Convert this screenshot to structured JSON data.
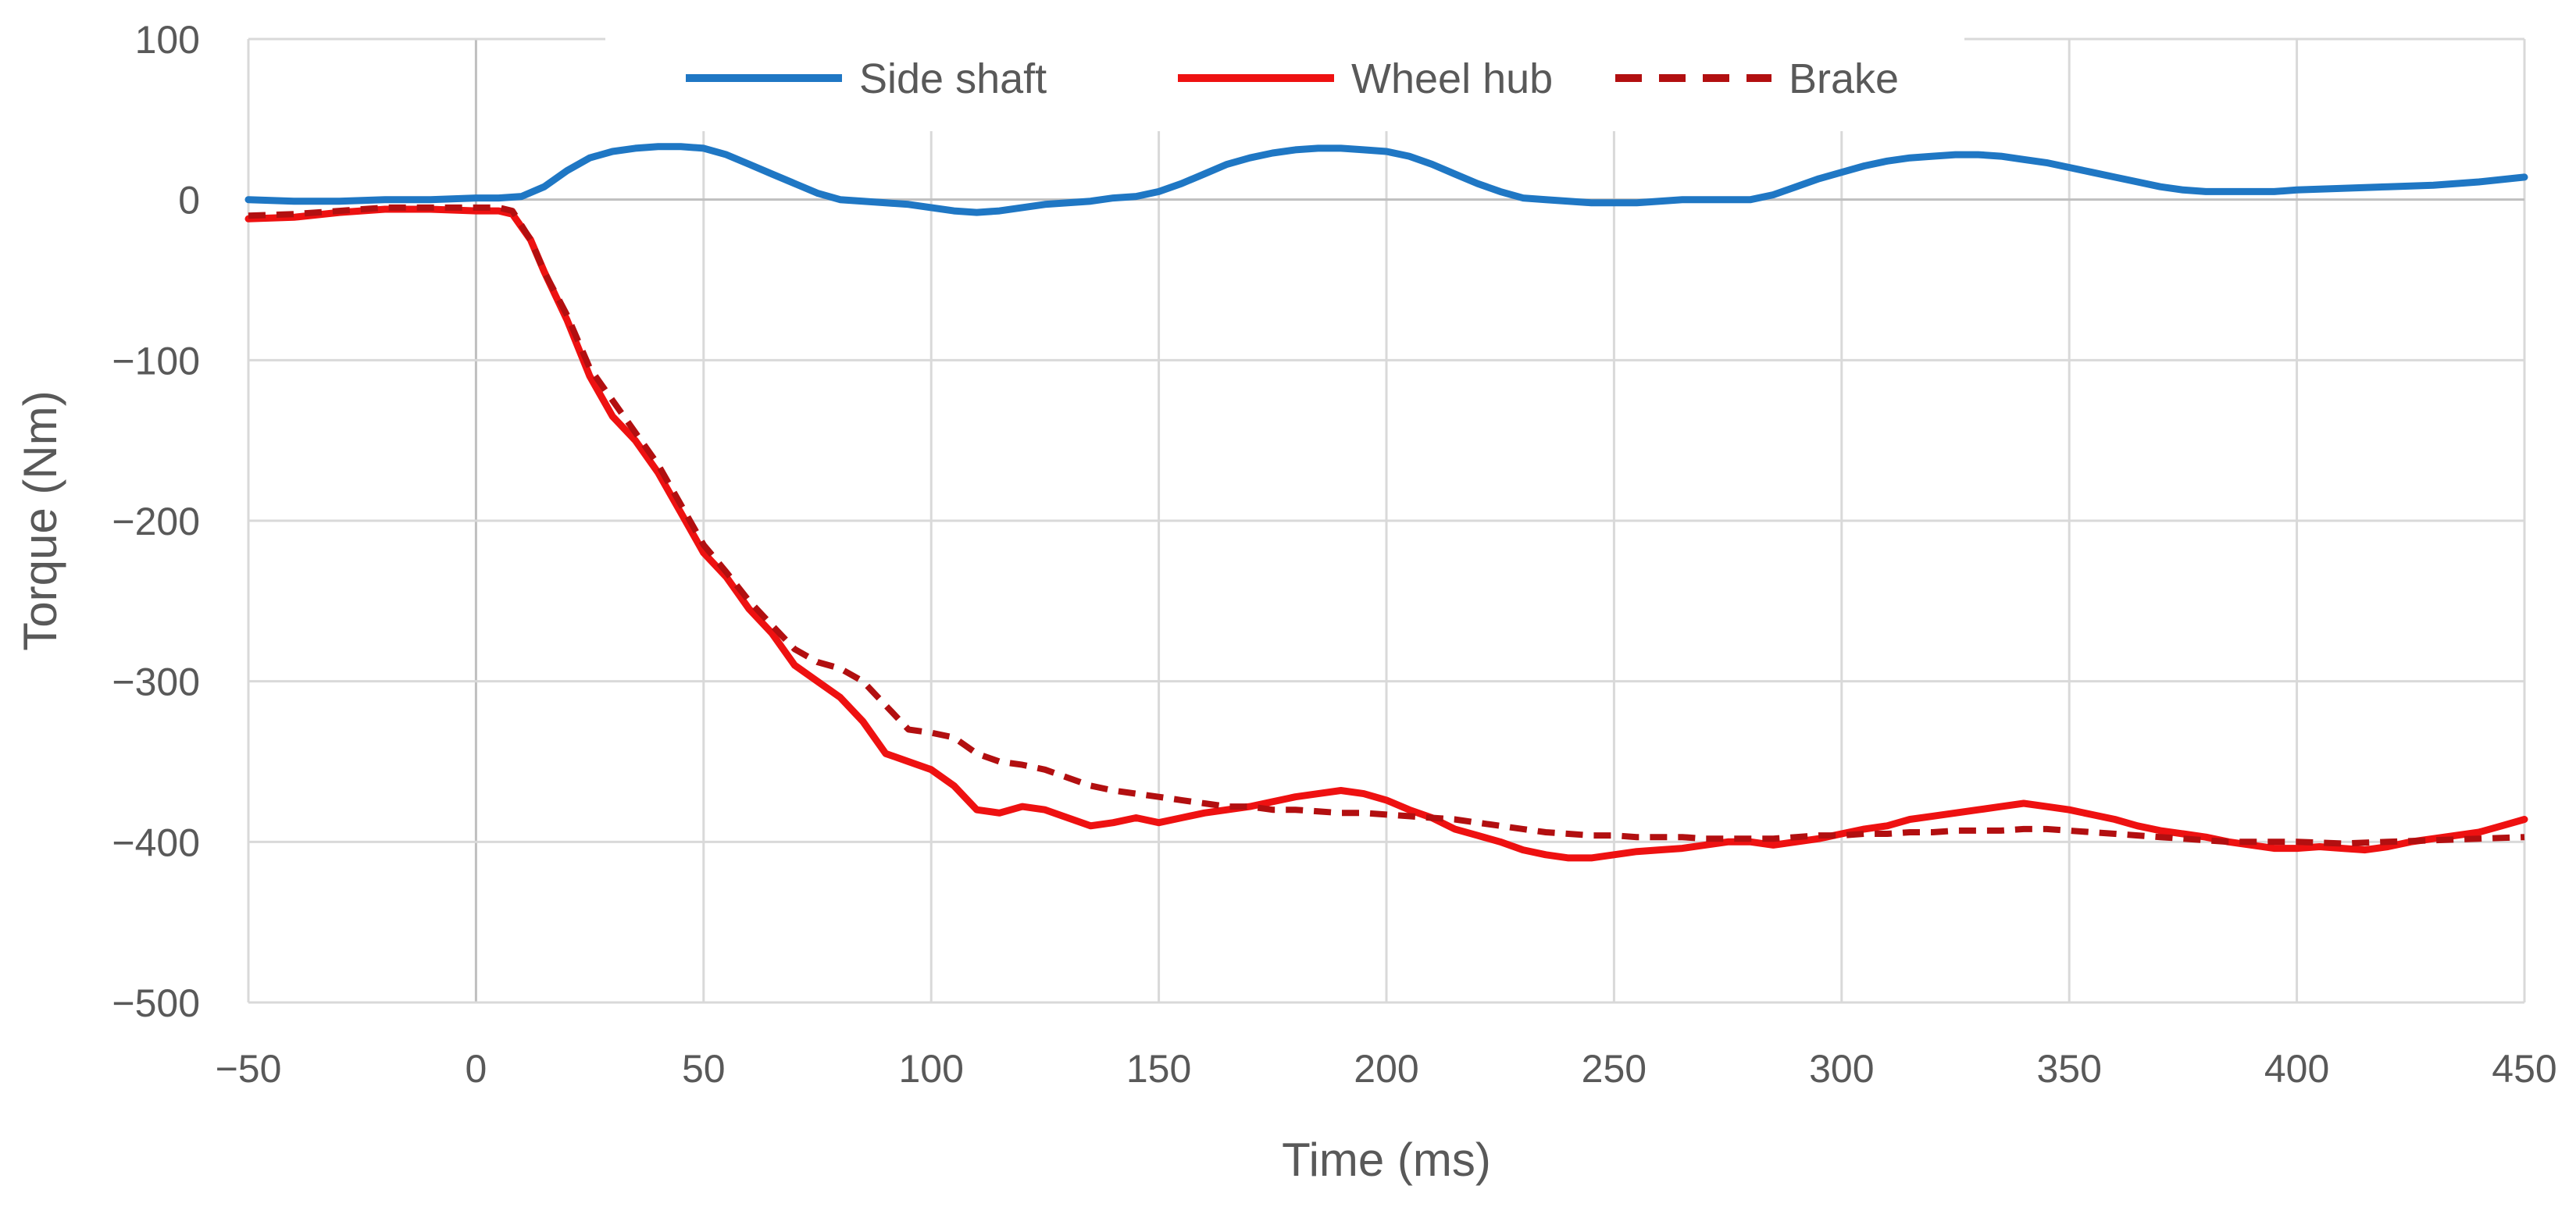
{
  "chart_data": {
    "type": "line",
    "title": "",
    "xlabel": "Time (ms)",
    "ylabel": "Torque (Nm)",
    "xlim": [
      -50,
      450
    ],
    "ylim": [
      -500,
      100
    ],
    "x_ticks": [
      -50,
      0,
      50,
      100,
      150,
      200,
      250,
      300,
      350,
      400,
      450
    ],
    "y_ticks": [
      100,
      0,
      -100,
      -200,
      -300,
      -400,
      -500
    ],
    "x_tick_labels": [
      "−50",
      "0",
      "50",
      "100",
      "150",
      "200",
      "250",
      "300",
      "350",
      "400",
      "450"
    ],
    "y_tick_labels": [
      "100",
      "0",
      "−100",
      "−200",
      "−300",
      "−400",
      "−500"
    ],
    "grid": true,
    "legend_position": "top",
    "series": [
      {
        "name": "Side shaft",
        "color": "#1f77c4",
        "style": "solid",
        "x": [
          -50,
          -40,
          -30,
          -20,
          -10,
          0,
          5,
          10,
          15,
          20,
          25,
          30,
          35,
          40,
          45,
          50,
          55,
          60,
          65,
          70,
          75,
          80,
          85,
          90,
          95,
          100,
          105,
          110,
          115,
          120,
          125,
          130,
          135,
          140,
          145,
          150,
          155,
          160,
          165,
          170,
          175,
          180,
          185,
          190,
          195,
          200,
          205,
          210,
          215,
          220,
          225,
          230,
          235,
          240,
          245,
          250,
          255,
          260,
          265,
          270,
          275,
          280,
          285,
          290,
          295,
          300,
          305,
          310,
          315,
          320,
          325,
          330,
          335,
          340,
          345,
          350,
          355,
          360,
          365,
          370,
          375,
          380,
          385,
          390,
          395,
          400,
          410,
          420,
          430,
          440,
          450
        ],
        "y": [
          0,
          -1,
          -1,
          0,
          0,
          1,
          1,
          2,
          8,
          18,
          26,
          30,
          32,
          33,
          33,
          32,
          28,
          22,
          16,
          10,
          4,
          0,
          -1,
          -2,
          -3,
          -5,
          -7,
          -8,
          -7,
          -5,
          -3,
          -2,
          -1,
          1,
          2,
          5,
          10,
          16,
          22,
          26,
          29,
          31,
          32,
          32,
          31,
          30,
          27,
          22,
          16,
          10,
          5,
          1,
          0,
          -1,
          -2,
          -2,
          -2,
          -1,
          0,
          0,
          0,
          0,
          3,
          8,
          13,
          17,
          21,
          24,
          26,
          27,
          28,
          28,
          27,
          25,
          23,
          20,
          17,
          14,
          11,
          8,
          6,
          5,
          5,
          5,
          5,
          6,
          7,
          8,
          9,
          11,
          14
        ]
      },
      {
        "name": "Wheel hub",
        "color": "#ee1111",
        "style": "solid",
        "x": [
          -50,
          -40,
          -30,
          -20,
          -10,
          0,
          5,
          8,
          12,
          15,
          20,
          25,
          30,
          35,
          40,
          45,
          50,
          55,
          60,
          65,
          70,
          75,
          80,
          85,
          90,
          95,
          100,
          105,
          110,
          115,
          120,
          125,
          130,
          135,
          140,
          145,
          150,
          155,
          160,
          165,
          170,
          175,
          180,
          185,
          190,
          195,
          200,
          205,
          210,
          215,
          220,
          225,
          230,
          235,
          240,
          245,
          250,
          255,
          260,
          265,
          270,
          275,
          280,
          285,
          290,
          295,
          300,
          305,
          310,
          315,
          320,
          325,
          330,
          335,
          340,
          345,
          350,
          355,
          360,
          365,
          370,
          375,
          380,
          385,
          390,
          395,
          400,
          405,
          410,
          415,
          420,
          425,
          430,
          435,
          440,
          445,
          450
        ],
        "y": [
          -12,
          -11,
          -8,
          -6,
          -6,
          -7,
          -7,
          -9,
          -25,
          -45,
          -75,
          -110,
          -135,
          -150,
          -170,
          -195,
          -220,
          -235,
          -255,
          -270,
          -290,
          -300,
          -310,
          -325,
          -345,
          -350,
          -355,
          -365,
          -380,
          -382,
          -378,
          -380,
          -385,
          -390,
          -388,
          -385,
          -388,
          -385,
          -382,
          -380,
          -378,
          -375,
          -372,
          -370,
          -368,
          -370,
          -374,
          -380,
          -385,
          -392,
          -396,
          -400,
          -405,
          -408,
          -410,
          -410,
          -408,
          -406,
          -405,
          -404,
          -402,
          -400,
          -400,
          -402,
          -400,
          -398,
          -395,
          -392,
          -390,
          -386,
          -384,
          -382,
          -380,
          -378,
          -376,
          -378,
          -380,
          -383,
          -386,
          -390,
          -393,
          -395,
          -397,
          -400,
          -402,
          -404,
          -404,
          -403,
          -404,
          -405,
          -403,
          -400,
          -398,
          -396,
          -394,
          -390,
          -386
        ]
      },
      {
        "name": "Brake",
        "color": "#b20f10",
        "style": "dashed",
        "x": [
          -50,
          -40,
          -30,
          -20,
          -10,
          0,
          5,
          8,
          12,
          15,
          20,
          25,
          30,
          35,
          40,
          45,
          50,
          55,
          60,
          65,
          70,
          75,
          80,
          85,
          90,
          95,
          100,
          105,
          110,
          115,
          120,
          125,
          130,
          135,
          140,
          145,
          150,
          155,
          160,
          165,
          170,
          175,
          180,
          185,
          190,
          195,
          200,
          205,
          210,
          215,
          220,
          225,
          230,
          235,
          240,
          245,
          250,
          255,
          260,
          265,
          270,
          275,
          280,
          285,
          290,
          295,
          300,
          305,
          310,
          315,
          320,
          325,
          330,
          335,
          340,
          345,
          350,
          355,
          360,
          365,
          370,
          375,
          380,
          385,
          390,
          395,
          400,
          410,
          420,
          430,
          440,
          450
        ],
        "y": [
          -10,
          -9,
          -7,
          -5,
          -5,
          -5,
          -5,
          -7,
          -25,
          -45,
          -72,
          -105,
          -125,
          -145,
          -165,
          -190,
          -215,
          -232,
          -250,
          -265,
          -280,
          -288,
          -292,
          -300,
          -315,
          -330,
          -332,
          -335,
          -345,
          -350,
          -352,
          -355,
          -360,
          -365,
          -368,
          -370,
          -372,
          -374,
          -376,
          -378,
          -378,
          -380,
          -380,
          -381,
          -382,
          -382,
          -383,
          -384,
          -385,
          -386,
          -388,
          -390,
          -392,
          -394,
          -395,
          -396,
          -396,
          -397,
          -397,
          -397,
          -398,
          -398,
          -398,
          -398,
          -397,
          -396,
          -396,
          -395,
          -395,
          -394,
          -394,
          -393,
          -393,
          -393,
          -392,
          -392,
          -393,
          -394,
          -395,
          -396,
          -397,
          -398,
          -399,
          -400,
          -400,
          -400,
          -400,
          -401,
          -400,
          -399,
          -398,
          -397
        ]
      }
    ]
  }
}
